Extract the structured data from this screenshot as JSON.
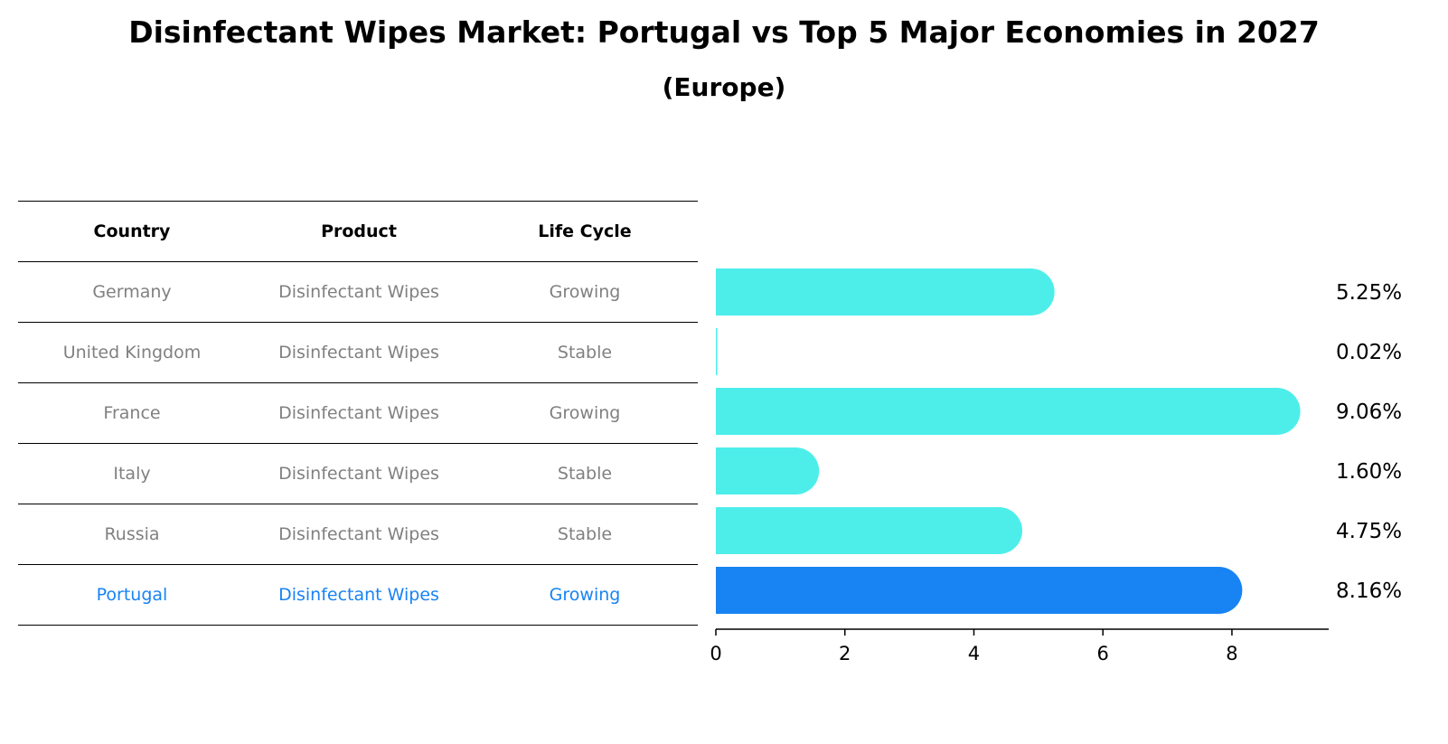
{
  "header": {
    "title": "Disinfectant Wipes Market: Portugal vs Top 5 Major Economies in 2027",
    "subtitle": "(Europe)"
  },
  "table": {
    "columns": [
      "Country",
      "Product",
      "Life Cycle"
    ],
    "rows": [
      {
        "country": "Germany",
        "product": "Disinfectant Wipes",
        "life_cycle": "Growing"
      },
      {
        "country": "United Kingdom",
        "product": "Disinfectant Wipes",
        "life_cycle": "Stable"
      },
      {
        "country": "France",
        "product": "Disinfectant Wipes",
        "life_cycle": "Growing"
      },
      {
        "country": "Italy",
        "product": "Disinfectant Wipes",
        "life_cycle": "Stable"
      },
      {
        "country": "Russia",
        "product": "Disinfectant Wipes",
        "life_cycle": "Stable"
      },
      {
        "country": "Portugal",
        "product": "Disinfectant Wipes",
        "life_cycle": "Growing"
      }
    ]
  },
  "chart_data": {
    "type": "bar",
    "orientation": "horizontal",
    "categories": [
      "Germany",
      "United Kingdom",
      "France",
      "Italy",
      "Russia",
      "Portugal"
    ],
    "values": [
      5.25,
      0.02,
      9.06,
      1.6,
      4.75,
      8.16
    ],
    "value_labels": [
      "5.25%",
      "0.02%",
      "9.06%",
      "1.60%",
      "4.75%",
      "8.16%"
    ],
    "xlim": [
      0,
      9.5
    ],
    "xticks": [
      0,
      2,
      4,
      6,
      8
    ],
    "highlight": "Portugal",
    "colors": {
      "default": "#4deeea",
      "highlight": "#1883f3"
    },
    "grid": false
  }
}
